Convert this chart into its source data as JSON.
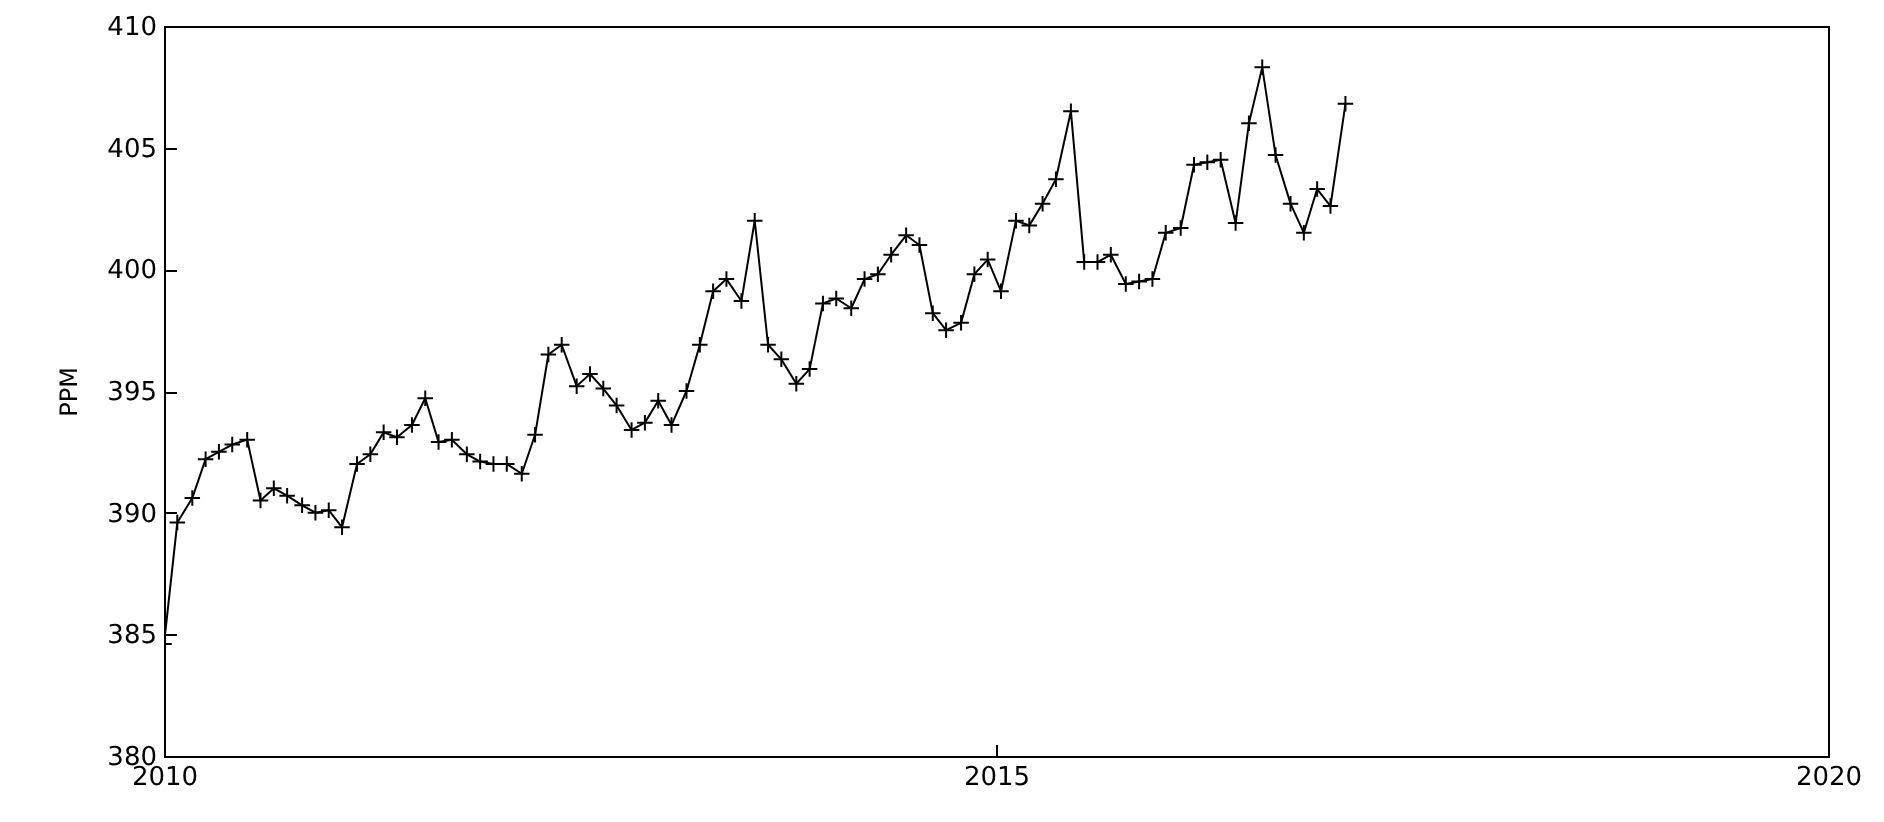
{
  "chart_data": {
    "type": "line",
    "ylabel": "PPM",
    "marker": "cross",
    "line_style": "solid",
    "grid": false,
    "xlim": [
      2010,
      2020
    ],
    "xticks": [
      2010,
      2015,
      2020
    ],
    "ylim": [
      380,
      410
    ],
    "yticks": [
      380,
      385,
      390,
      395,
      400,
      405,
      410
    ],
    "x": [
      2010,
      2010.08,
      2010.17,
      2010.25,
      2010.33,
      2010.41,
      2010.5,
      2010.58,
      2010.66,
      2010.74,
      2010.83,
      2010.91,
      2010.99,
      2011.07,
      2011.16,
      2011.24,
      2011.32,
      2011.4,
      2011.49,
      2011.57,
      2011.65,
      2011.73,
      2011.82,
      2011.9,
      2011.98,
      2012.06,
      2012.15,
      2012.23,
      2012.31,
      2012.39,
      2012.48,
      2012.56,
      2012.64,
      2012.72,
      2012.81,
      2012.89,
      2012.97,
      2013.05,
      2013.14,
      2013.22,
      2013.3,
      2013.38,
      2013.47,
      2013.55,
      2013.63,
      2013.71,
      2013.8,
      2013.88,
      2013.96,
      2014.04,
      2014.13,
      2014.21,
      2014.29,
      2014.37,
      2014.46,
      2014.54,
      2014.62,
      2014.7,
      2014.79,
      2014.87,
      2014.95,
      2015.03,
      2015.12,
      2015.2,
      2015.28,
      2015.36,
      2015.45,
      2015.53,
      2015.61,
      2015.69,
      2015.78,
      2015.86,
      2015.94,
      2016.02,
      2016.11,
      2016.19,
      2016.27,
      2016.35,
      2016.44,
      2016.52,
      2016.6,
      2016.68,
      2016.77,
      2016.85,
      2016.93,
      2017.01,
      2017.1
    ],
    "series": [
      {
        "color": "#000000",
        "values": [
          384.6,
          389.6,
          390.6,
          392.2,
          392.5,
          392.8,
          393.0,
          390.5,
          391.0,
          390.7,
          390.3,
          390.0,
          390.1,
          389.4,
          392.0,
          392.4,
          393.3,
          393.1,
          393.6,
          394.7,
          392.9,
          393.0,
          392.4,
          392.1,
          392.0,
          392.0,
          391.6,
          393.2,
          396.5,
          396.9,
          395.2,
          395.7,
          395.1,
          394.4,
          393.4,
          393.7,
          394.6,
          393.6,
          395.0,
          396.9,
          399.1,
          399.6,
          398.7,
          402.0,
          396.9,
          396.3,
          395.3,
          395.9,
          398.6,
          398.8,
          398.4,
          399.6,
          399.8,
          400.6,
          401.4,
          401.0,
          398.2,
          397.5,
          397.8,
          399.8,
          400.4,
          399.1,
          402.0,
          401.8,
          402.7,
          403.7,
          406.5,
          400.3,
          400.3,
          400.6,
          399.4,
          399.5,
          399.6,
          401.5,
          401.7,
          404.3,
          404.4,
          404.5,
          401.9,
          406.0,
          408.3,
          404.7,
          402.7,
          401.5,
          403.3,
          402.6,
          406.8
        ]
      }
    ]
  }
}
